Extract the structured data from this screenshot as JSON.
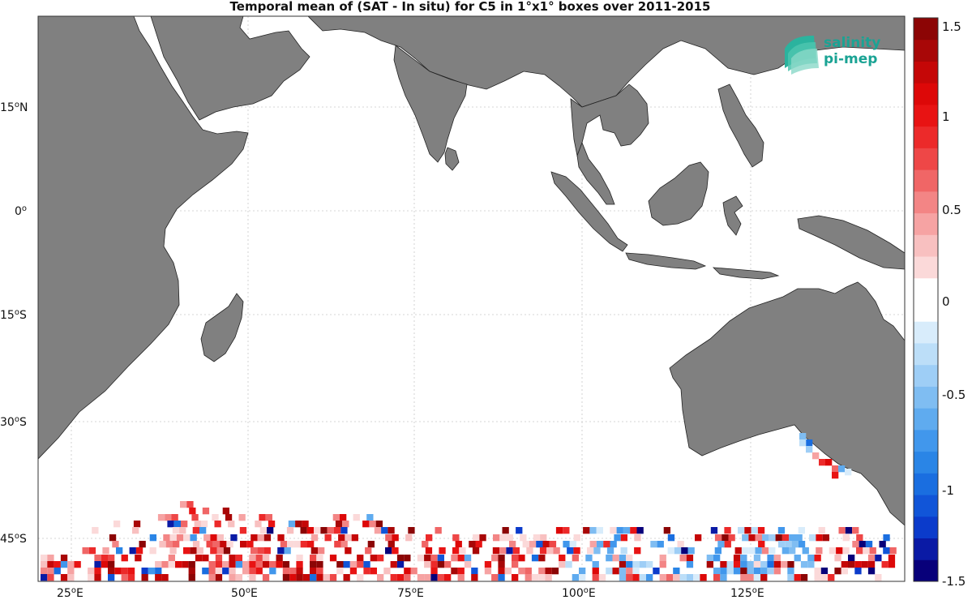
{
  "title": "Temporal mean of (SAT - In situ) for C5 in 1°x1° boxes over 2011-2015",
  "logo": {
    "line1": "salinity",
    "line2": "pi-mep",
    "color": "#1aa394"
  },
  "map": {
    "land_color": "#808080",
    "ocean_color": "#ffffff",
    "grid": true,
    "lon_ticks": [
      {
        "value": 25,
        "deg": "25",
        "hemi": "E"
      },
      {
        "value": 50,
        "deg": "50",
        "hemi": "E"
      },
      {
        "value": 75,
        "deg": "75",
        "hemi": "E"
      },
      {
        "value": 100,
        "deg": "100",
        "hemi": "E"
      },
      {
        "value": 125,
        "deg": "125",
        "hemi": "E"
      }
    ],
    "lat_ticks": [
      {
        "value": 15,
        "deg": "15",
        "hemi": "N"
      },
      {
        "value": 0,
        "deg": "0",
        "hemi": ""
      },
      {
        "value": -15,
        "deg": "15",
        "hemi": "S"
      },
      {
        "value": -30,
        "deg": "30",
        "hemi": "S"
      },
      {
        "value": -45,
        "deg": "45",
        "hemi": "S"
      }
    ]
  },
  "colorbar": {
    "min": -1.5,
    "max": 1.5,
    "ticks": [
      "1.5",
      "1",
      "0.5",
      "0",
      "-0.5",
      "-1",
      "-1.5"
    ],
    "colors": [
      "#08007a",
      "#0a1aa5",
      "#0b3bcb",
      "#1155d8",
      "#1a6ee0",
      "#2a85e6",
      "#4197ec",
      "#5fabef",
      "#7fbdf2",
      "#9ecef6",
      "#bcdef8",
      "#d8ecfb",
      "#ffffff",
      "#ffffff",
      "#fbd9d9",
      "#f8c0c0",
      "#f6a3a3",
      "#f38585",
      "#f06666",
      "#ee4747",
      "#ec2a2a",
      "#e81313",
      "#dd0808",
      "#c50707",
      "#a80707",
      "#8c0505"
    ]
  }
}
